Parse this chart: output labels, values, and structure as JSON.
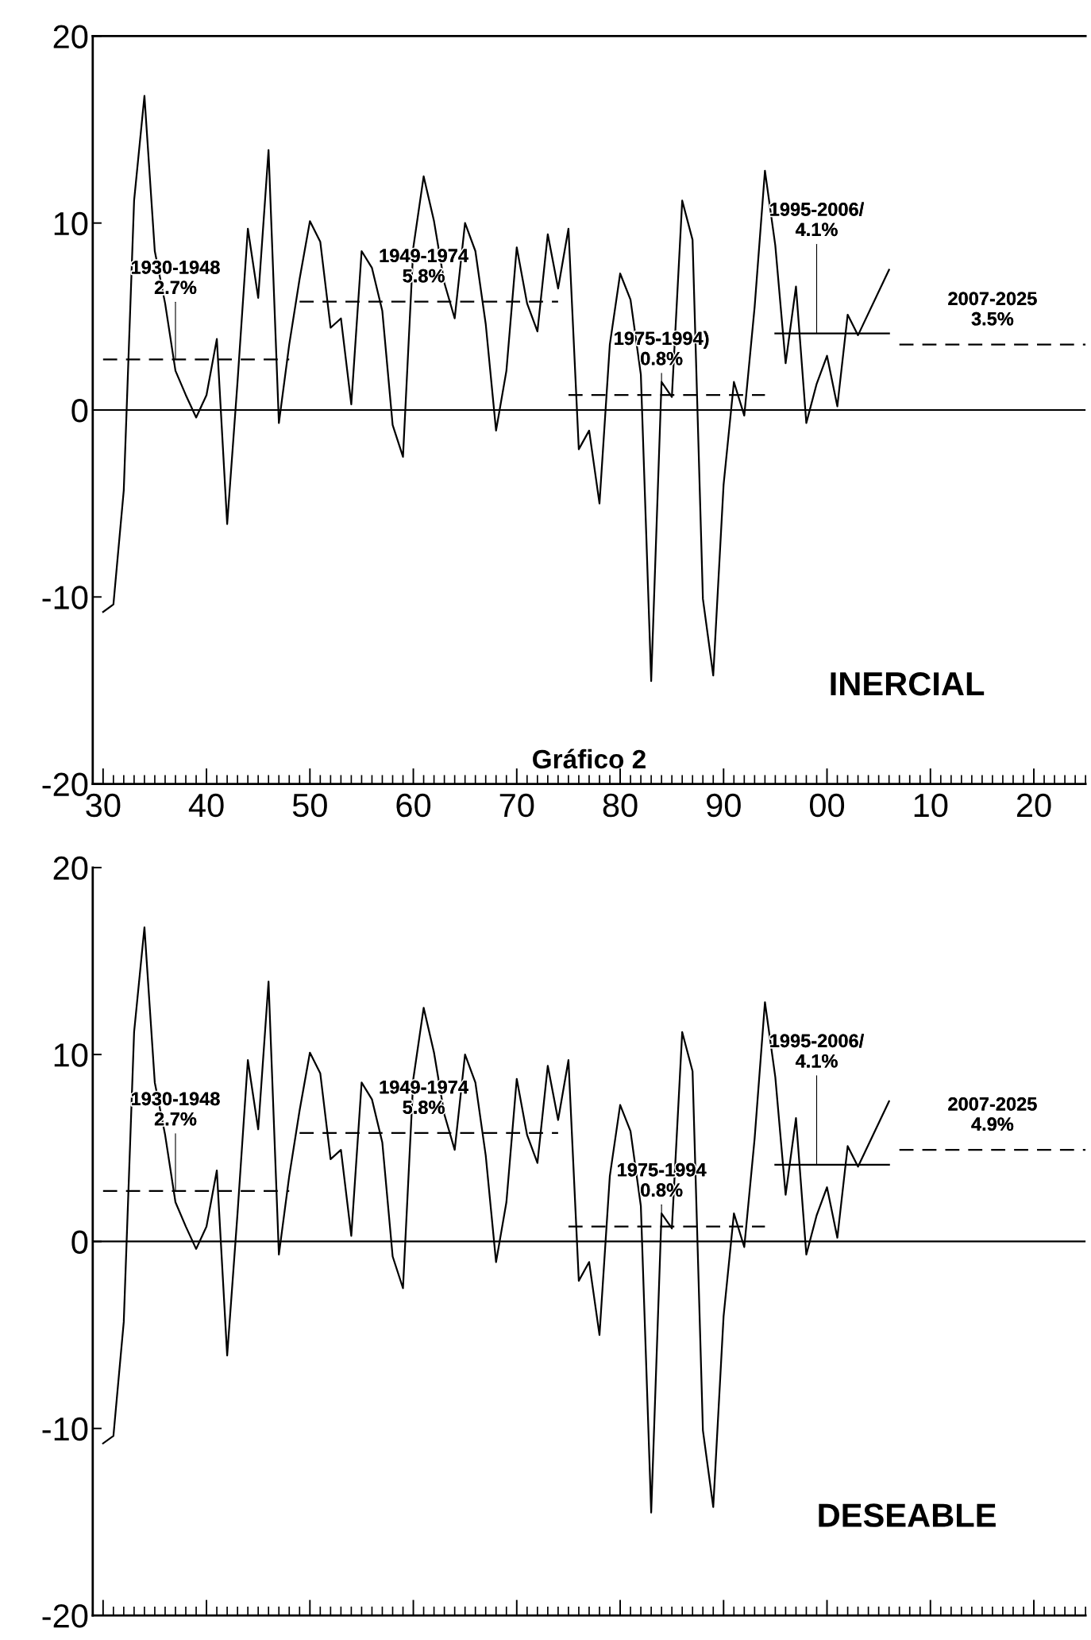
{
  "chart_data": [
    {
      "type": "line",
      "xlim": [
        1929,
        2025
      ],
      "ylim": [
        -20,
        20
      ],
      "xticks": [
        {
          "value": 1930,
          "label": "30"
        },
        {
          "value": 1940,
          "label": "40"
        },
        {
          "value": 1950,
          "label": "50"
        },
        {
          "value": 1960,
          "label": "60"
        },
        {
          "value": 1970,
          "label": "70"
        },
        {
          "value": 1980,
          "label": "80"
        },
        {
          "value": 1990,
          "label": "90"
        },
        {
          "value": 2000,
          "label": "00"
        },
        {
          "value": 2010,
          "label": "10"
        },
        {
          "value": 2020,
          "label": "20"
        }
      ],
      "yticks": [
        -20,
        -10,
        0,
        10,
        20
      ],
      "ref_lines": [
        {
          "axis": "y",
          "value": 0,
          "color": "#000000",
          "line_style": "solid"
        }
      ],
      "series": [
        {
          "color": "#000000",
          "line_style": "solid",
          "x": [
            1930,
            1931,
            1932,
            1933,
            1934,
            1935,
            1936,
            1937,
            1938,
            1939,
            1940,
            1941,
            1942,
            1943,
            1944,
            1945,
            1946,
            1947,
            1948,
            1949,
            1950,
            1951,
            1952,
            1953,
            1954,
            1955,
            1956,
            1957,
            1958,
            1959,
            1960,
            1961,
            1962,
            1963,
            1964,
            1965,
            1966,
            1967,
            1968,
            1969,
            1970,
            1971,
            1972,
            1973,
            1974,
            1975,
            1976,
            1977,
            1978,
            1979,
            1980,
            1981,
            1982,
            1983,
            1984,
            1985,
            1986,
            1987,
            1988,
            1989,
            1990,
            1991,
            1992,
            1993,
            1994,
            1995,
            1996,
            1997,
            1998,
            1999,
            2000,
            2001,
            2002,
            2003,
            2006
          ],
          "values": [
            -10.8,
            -10.4,
            -4.3,
            11.2,
            16.8,
            8.5,
            5.7,
            2.1,
            0.8,
            -0.4,
            0.8,
            3.8,
            -6.1,
            1.5,
            9.7,
            6.0,
            13.9,
            -0.7,
            3.5,
            7.0,
            10.1,
            9.0,
            4.4,
            4.9,
            0.3,
            8.5,
            7.6,
            5.3,
            -0.8,
            -2.5,
            8.7,
            12.5,
            10.1,
            6.8,
            4.9,
            10.0,
            8.5,
            4.6,
            -1.1,
            2.1,
            8.7,
            5.7,
            4.2,
            9.4,
            6.5,
            9.7,
            -2.1,
            -1.1,
            -5.0,
            3.5,
            7.3,
            5.9,
            1.9,
            -14.5,
            1.5,
            0.7,
            11.2,
            9.1,
            -10.1,
            -14.2,
            -4.0,
            1.5,
            -0.3,
            5.5,
            12.8,
            8.8,
            2.5,
            6.6,
            -0.7,
            1.4,
            2.9,
            0.2,
            5.1,
            4.0,
            7.5
          ]
        },
        {
          "color": "#000000",
          "line_style": "dashed",
          "x": [
            1930,
            1948
          ],
          "values": [
            2.7,
            2.7
          ]
        },
        {
          "color": "#000000",
          "line_style": "dashed",
          "x": [
            1949,
            1974
          ],
          "values": [
            5.8,
            5.8
          ]
        },
        {
          "color": "#000000",
          "line_style": "dashed",
          "x": [
            1975,
            1994
          ],
          "values": [
            0.8,
            0.8
          ]
        },
        {
          "color": "#000000",
          "line_style": "solid",
          "x": [
            1995,
            2006
          ],
          "values": [
            4.1,
            4.1
          ]
        },
        {
          "color": "#000000",
          "line_style": "dashed",
          "x": [
            2007,
            2025
          ],
          "values": [
            3.5,
            3.5
          ]
        }
      ],
      "annotations": [
        "INERCIAL",
        "Gráfico 2",
        {
          "text": "1930-1948\n2.7%",
          "x": 1937,
          "y": 2.7
        },
        {
          "text": "1949-1974\n5.8%",
          "x": 1961,
          "y": 5.8
        },
        {
          "text": "1975-1994)\n0.8%",
          "x": 1984,
          "y": 0.8
        },
        {
          "text": "1995-2006/\n4.1%",
          "x": 1999,
          "y": 4.1
        },
        {
          "text": "2007-2025\n3.5%",
          "x": 2016,
          "y": 3.5
        }
      ]
    },
    {
      "type": "line",
      "xlim": [
        1929,
        2025
      ],
      "ylim": [
        -20,
        20
      ],
      "tick_labels": "y",
      "xticks": [
        1930,
        1940,
        1950,
        1960,
        1970,
        1980,
        1990,
        2000,
        2010,
        2020
      ],
      "yticks": [
        -20,
        -10,
        0,
        10,
        20
      ],
      "ref_lines": [
        {
          "axis": "y",
          "value": 0,
          "color": "#000000",
          "line_style": "solid"
        }
      ],
      "series": [
        {
          "color": "#000000",
          "line_style": "solid",
          "x": [
            1930,
            1931,
            1932,
            1933,
            1934,
            1935,
            1936,
            1937,
            1938,
            1939,
            1940,
            1941,
            1942,
            1943,
            1944,
            1945,
            1946,
            1947,
            1948,
            1949,
            1950,
            1951,
            1952,
            1953,
            1954,
            1955,
            1956,
            1957,
            1958,
            1959,
            1960,
            1961,
            1962,
            1963,
            1964,
            1965,
            1966,
            1967,
            1968,
            1969,
            1970,
            1971,
            1972,
            1973,
            1974,
            1975,
            1976,
            1977,
            1978,
            1979,
            1980,
            1981,
            1982,
            1983,
            1984,
            1985,
            1986,
            1987,
            1988,
            1989,
            1990,
            1991,
            1992,
            1993,
            1994,
            1995,
            1996,
            1997,
            1998,
            1999,
            2000,
            2001,
            2002,
            2003,
            2006
          ],
          "values": [
            -10.8,
            -10.4,
            -4.3,
            11.2,
            16.8,
            8.5,
            5.7,
            2.1,
            0.8,
            -0.4,
            0.8,
            3.8,
            -6.1,
            1.5,
            9.7,
            6.0,
            13.9,
            -0.7,
            3.5,
            7.0,
            10.1,
            9.0,
            4.4,
            4.9,
            0.3,
            8.5,
            7.6,
            5.3,
            -0.8,
            -2.5,
            8.7,
            12.5,
            10.1,
            6.8,
            4.9,
            10.0,
            8.5,
            4.6,
            -1.1,
            2.1,
            8.7,
            5.7,
            4.2,
            9.4,
            6.5,
            9.7,
            -2.1,
            -1.1,
            -5.0,
            3.5,
            7.3,
            5.9,
            1.9,
            -14.5,
            1.5,
            0.7,
            11.2,
            9.1,
            -10.1,
            -14.2,
            -4.0,
            1.5,
            -0.3,
            5.5,
            12.8,
            8.8,
            2.5,
            6.6,
            -0.7,
            1.4,
            2.9,
            0.2,
            5.1,
            4.0,
            7.5
          ]
        },
        {
          "color": "#000000",
          "line_style": "dashed",
          "x": [
            1930,
            1948
          ],
          "values": [
            2.7,
            2.7
          ]
        },
        {
          "color": "#000000",
          "line_style": "dashed",
          "x": [
            1949,
            1974
          ],
          "values": [
            5.8,
            5.8
          ]
        },
        {
          "color": "#000000",
          "line_style": "dashed",
          "x": [
            1975,
            1994
          ],
          "values": [
            0.8,
            0.8
          ]
        },
        {
          "color": "#000000",
          "line_style": "solid",
          "x": [
            1995,
            2006
          ],
          "values": [
            4.1,
            4.1
          ]
        },
        {
          "color": "#000000",
          "line_style": "dashed",
          "x": [
            2007,
            2025
          ],
          "values": [
            4.9,
            4.9
          ]
        }
      ],
      "annotations": [
        "DESEABLE",
        {
          "text": "1930-1948\n2.7%",
          "x": 1937,
          "y": 2.7
        },
        {
          "text": "1949-1974\n5.8%",
          "x": 1961,
          "y": 5.8
        },
        {
          "text": "1975-1994\n0.8%",
          "x": 1984,
          "y": 0.8
        },
        {
          "text": "1995-2006/\n4.1%",
          "x": 1999,
          "y": 4.1
        },
        {
          "text": "2007-2025\n4.9%",
          "x": 2016,
          "y": 4.9
        }
      ]
    }
  ]
}
